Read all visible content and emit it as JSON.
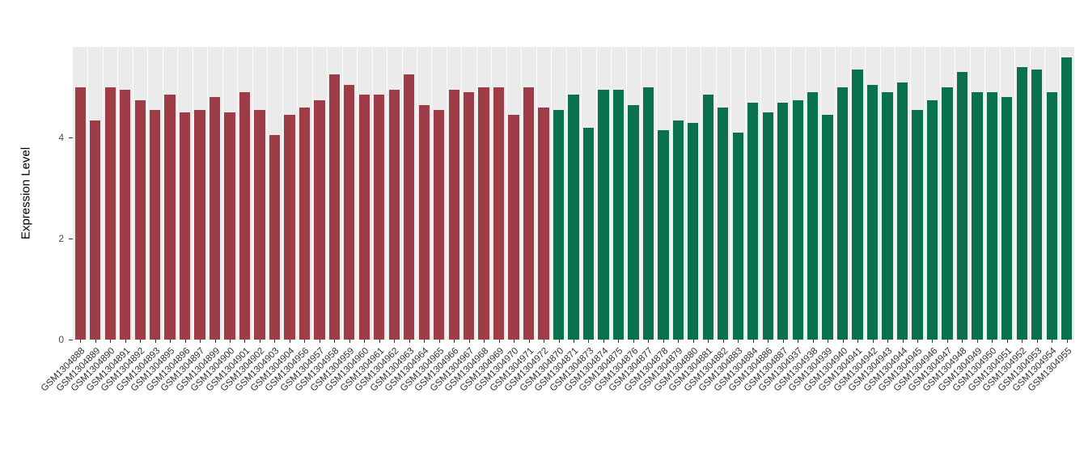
{
  "chart_data": {
    "type": "bar",
    "title": "",
    "xlabel": "",
    "ylabel": "Expression Level",
    "ylim": [
      0,
      5.8
    ],
    "yticks": [
      0,
      2,
      4
    ],
    "grid": "vertical white gridlines on gray panel",
    "legend": "none",
    "panel_background": "#EBEBEB",
    "groups": [
      {
        "name": "group-1",
        "color": "#9E3D48",
        "categories": [
          "GSM1304888",
          "GSM1304889",
          "GSM1304890",
          "GSM1304891",
          "GSM1304892",
          "GSM1304893",
          "GSM1304895",
          "GSM1304896",
          "GSM1304897",
          "GSM1304899",
          "GSM1304900",
          "GSM1304901",
          "GSM1304902",
          "GSM1304903",
          "GSM1304904",
          "GSM1304956",
          "GSM1304957",
          "GSM1304958",
          "GSM1304959",
          "GSM1304960",
          "GSM1304961",
          "GSM1304962",
          "GSM1304963",
          "GSM1304964",
          "GSM1304965",
          "GSM1304966",
          "GSM1304967",
          "GSM1304968",
          "GSM1304969",
          "GSM1304970",
          "GSM1304971",
          "GSM1304972"
        ],
        "values": [
          5.0,
          4.35,
          5.0,
          4.95,
          4.75,
          4.55,
          4.85,
          4.5,
          4.55,
          4.8,
          4.5,
          4.9,
          4.55,
          4.05,
          4.45,
          4.6,
          4.75,
          5.25,
          5.05,
          4.85,
          4.85,
          4.95,
          5.25,
          4.65,
          4.55,
          4.95,
          4.9,
          5.0,
          5.0,
          4.45,
          5.0,
          4.6
        ]
      },
      {
        "name": "group-2",
        "color": "#0A714D",
        "categories": [
          "GSM1304870",
          "GSM1304871",
          "GSM1304873",
          "GSM1304874",
          "GSM1304875",
          "GSM1304876",
          "GSM1304877",
          "GSM1304878",
          "GSM1304879",
          "GSM1304880",
          "GSM1304881",
          "GSM1304882",
          "GSM1304883",
          "GSM1304884",
          "GSM1304886",
          "GSM1304887",
          "GSM1304937",
          "GSM1304938",
          "GSM1304939",
          "GSM1304940",
          "GSM1304941",
          "GSM1304942",
          "GSM1304943",
          "GSM1304944",
          "GSM1304945",
          "GSM1304946",
          "GSM1304947",
          "GSM1304948",
          "GSM1304949",
          "GSM1304950",
          "GSM1304951",
          "GSM1304952",
          "GSM1304953",
          "GSM1304954",
          "GSM1304955"
        ],
        "values": [
          4.55,
          4.85,
          4.2,
          4.95,
          4.95,
          4.65,
          5.0,
          4.15,
          4.35,
          4.3,
          4.85,
          4.6,
          4.1,
          4.7,
          4.5,
          4.7,
          4.75,
          4.9,
          4.45,
          5.0,
          5.35,
          5.05,
          4.9,
          5.1,
          4.55,
          4.75,
          5.0,
          5.3,
          4.9,
          4.9,
          4.8,
          5.4,
          5.35,
          4.9,
          5.6
        ]
      }
    ]
  }
}
